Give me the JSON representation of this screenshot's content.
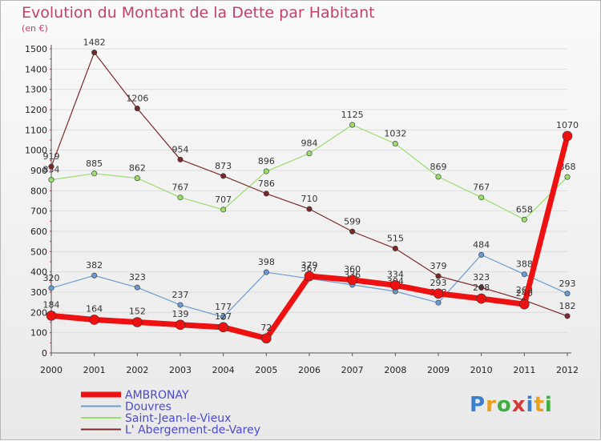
{
  "chart_data": {
    "type": "line",
    "title": "Evolution du Montant de la Dette par Habitant",
    "ylabel": "(en €)",
    "ylim": [
      0,
      1500
    ],
    "yticks": [
      0,
      100,
      200,
      300,
      400,
      500,
      600,
      700,
      800,
      900,
      1000,
      1100,
      1200,
      1300,
      1400,
      1500
    ],
    "x": [
      "2000",
      "2001",
      "2002",
      "2003",
      "2004",
      "2005",
      "2006",
      "2007",
      "2008",
      "2009",
      "2010",
      "2011",
      "2012"
    ],
    "grid": true,
    "legend": "bottom-left",
    "series": [
      {
        "name": "Douvres",
        "color": "#6b9bd0",
        "values": [
          320,
          382,
          323,
          237,
          177,
          398,
          367,
          336,
          304,
          248,
          484,
          388,
          293
        ]
      },
      {
        "name": "Saint-Jean-le-Vieux",
        "color": "#9bdc6e",
        "values": [
          854,
          885,
          862,
          767,
          707,
          896,
          984,
          1125,
          1032,
          869,
          767,
          658,
          868
        ]
      },
      {
        "name": "L' Abergement-de-Varey",
        "color": "#7a2a2a",
        "values": [
          919,
          1482,
          1206,
          954,
          873,
          786,
          710,
          599,
          515,
          379,
          323,
          260,
          182
        ]
      },
      {
        "name": "AMBRONAY",
        "color": "#ee1111",
        "values": [
          184,
          164,
          152,
          139,
          127,
          72,
          379,
          360,
          334,
          293,
          268,
          240,
          1070
        ]
      }
    ]
  },
  "logo": {
    "text": "Proxiti",
    "letters": [
      "P",
      "r",
      "o",
      "x",
      "i",
      "t",
      "i"
    ]
  }
}
